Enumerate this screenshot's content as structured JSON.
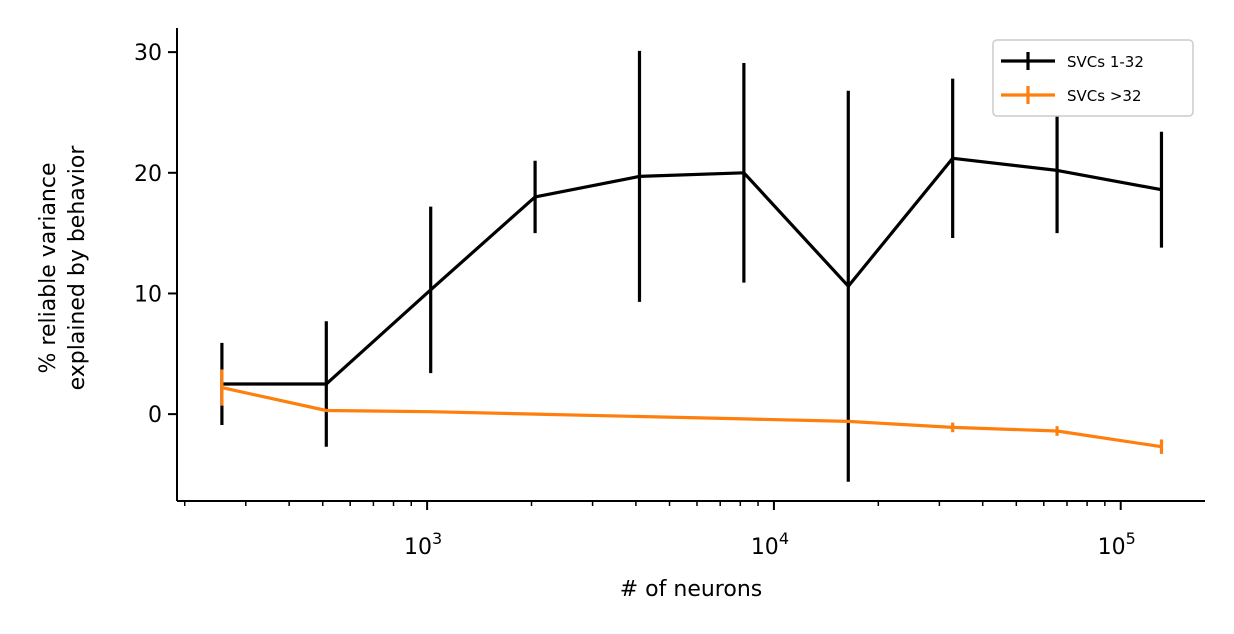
{
  "chart_data": {
    "type": "line",
    "title": "",
    "xlabel": "# of neurons",
    "ylabel_lines": [
      "% reliable variance",
      "explained by behavior"
    ],
    "x_scale": "log",
    "xlim": [
      190,
      175000
    ],
    "ylim": [
      -7.2,
      32
    ],
    "x_ticks": [
      {
        "value": 1000,
        "base": "10",
        "exp": "3"
      },
      {
        "value": 10000,
        "base": "10",
        "exp": "4"
      },
      {
        "value": 100000,
        "base": "10",
        "exp": "5"
      }
    ],
    "y_ticks": [
      0,
      10,
      20,
      30
    ],
    "grid": false,
    "legend_position": "top-right",
    "series": [
      {
        "name": "SVCs 1-32",
        "color": "#000000",
        "x": [
          256,
          512,
          1024,
          2048,
          4096,
          8192,
          16384,
          32768,
          65536,
          131072
        ],
        "y": [
          2.5,
          2.5,
          10.3,
          18.0,
          19.7,
          20.0,
          10.6,
          21.2,
          20.2,
          18.6
        ],
        "err": [
          3.4,
          5.2,
          6.9,
          3.0,
          10.4,
          9.1,
          16.2,
          6.6,
          5.2,
          4.8
        ]
      },
      {
        "name": "SVCs >32",
        "color": "#ff7f0e",
        "x": [
          256,
          512,
          1024,
          2048,
          4096,
          8192,
          16384,
          32768,
          65536,
          131072
        ],
        "y": [
          2.2,
          0.3,
          0.2,
          0.0,
          -0.2,
          -0.4,
          -0.6,
          -1.1,
          -1.4,
          -2.7
        ],
        "err": [
          1.5,
          0.1,
          0.1,
          0.1,
          0.1,
          0.1,
          0.1,
          0.4,
          0.4,
          0.6
        ]
      }
    ]
  }
}
